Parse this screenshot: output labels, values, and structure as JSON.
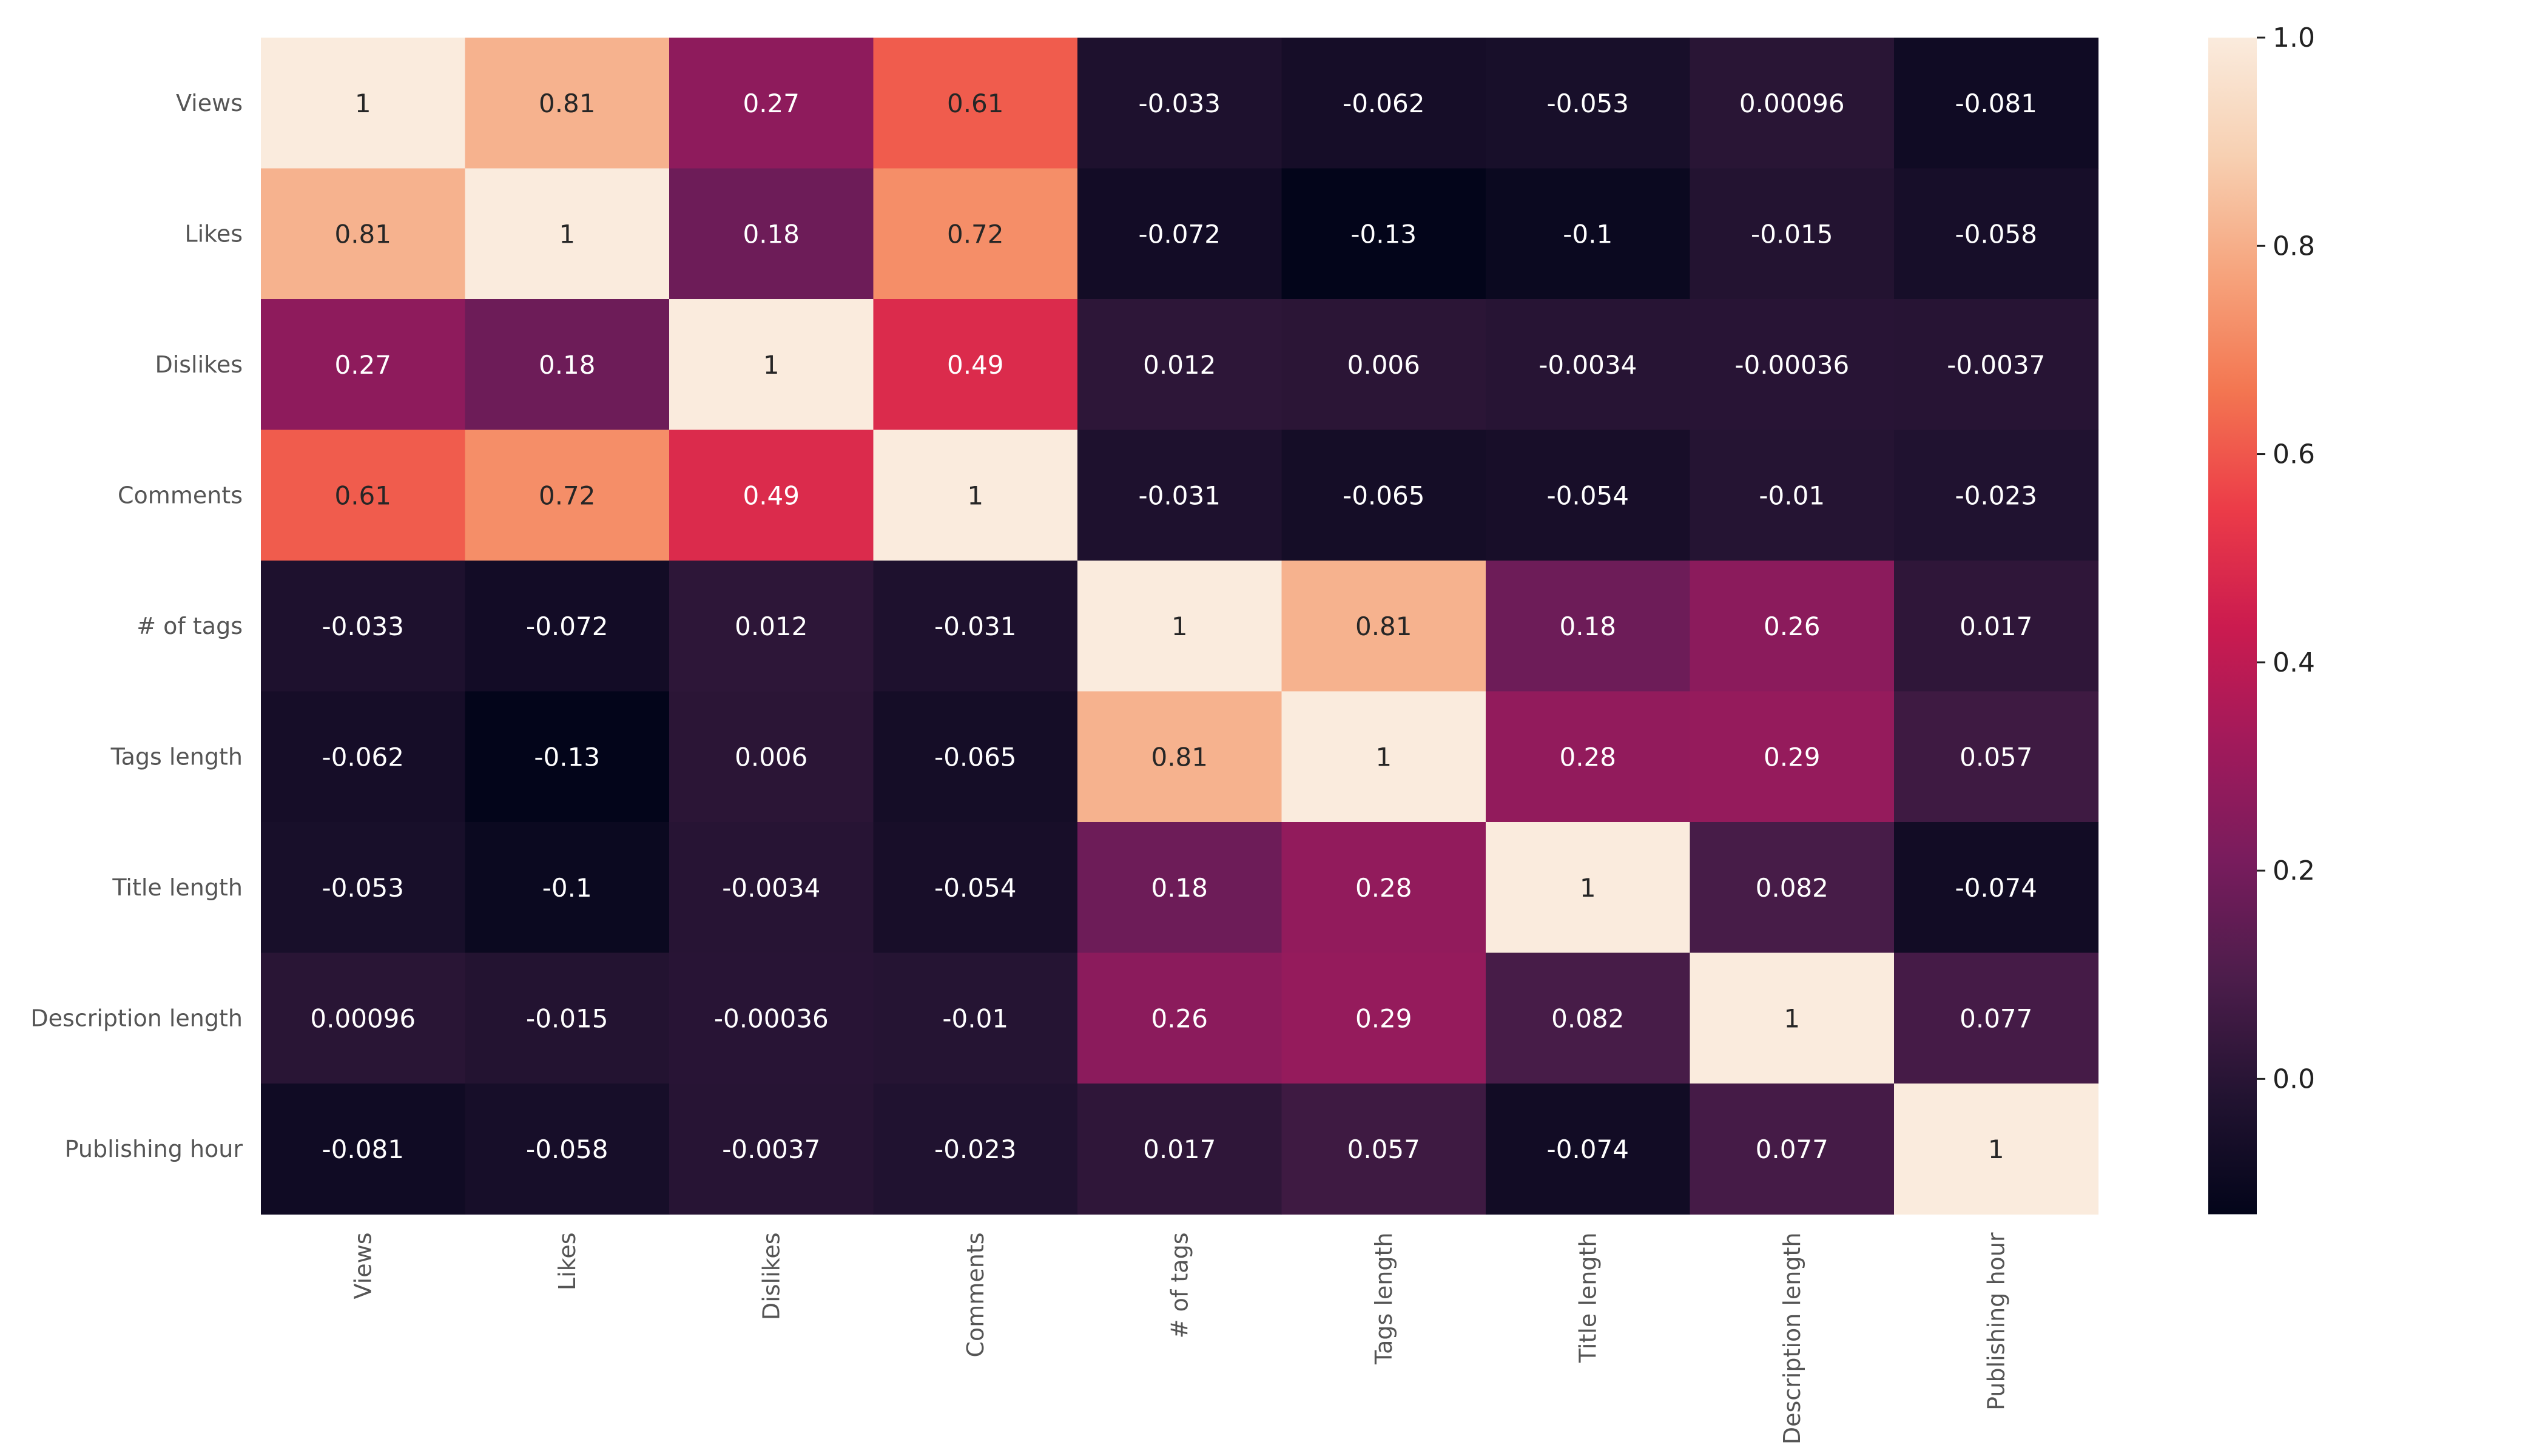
{
  "chart_data": {
    "type": "heatmap",
    "title": "",
    "xlabel": "",
    "ylabel": "",
    "rows": [
      "Views",
      "Likes",
      "Dislikes",
      "Comments",
      "# of tags",
      "Tags length",
      "Title length",
      "Description length",
      "Publishing hour"
    ],
    "columns": [
      "Views",
      "Likes",
      "Dislikes",
      "Comments",
      "# of tags",
      "Tags length",
      "Title length",
      "Description length",
      "Publishing hour"
    ],
    "values": [
      [
        1,
        0.81,
        0.27,
        0.61,
        -0.033,
        -0.062,
        -0.053,
        0.00096,
        -0.081
      ],
      [
        0.81,
        1,
        0.18,
        0.72,
        -0.072,
        -0.13,
        -0.1,
        -0.015,
        -0.058
      ],
      [
        0.27,
        0.18,
        1,
        0.49,
        0.012,
        0.006,
        -0.0034,
        -0.00036,
        -0.0037
      ],
      [
        0.61,
        0.72,
        0.49,
        1,
        -0.031,
        -0.065,
        -0.054,
        -0.01,
        -0.023
      ],
      [
        -0.033,
        -0.072,
        0.012,
        -0.031,
        1,
        0.81,
        0.18,
        0.26,
        0.017
      ],
      [
        -0.062,
        -0.13,
        0.006,
        -0.065,
        0.81,
        1,
        0.28,
        0.29,
        0.057
      ],
      [
        -0.053,
        -0.1,
        -0.0034,
        -0.054,
        0.18,
        0.28,
        1,
        0.082,
        -0.074
      ],
      [
        0.00096,
        -0.015,
        -0.00036,
        -0.01,
        0.26,
        0.29,
        0.082,
        1,
        0.077
      ],
      [
        -0.081,
        -0.058,
        -0.0037,
        -0.023,
        0.017,
        0.057,
        -0.074,
        0.077,
        1
      ]
    ],
    "labels": [
      [
        "1",
        "0.81",
        "0.27",
        "0.61",
        "-0.033",
        "-0.062",
        "-0.053",
        "0.00096",
        "-0.081"
      ],
      [
        "0.81",
        "1",
        "0.18",
        "0.72",
        "-0.072",
        "-0.13",
        "-0.1",
        "-0.015",
        "-0.058"
      ],
      [
        "0.27",
        "0.18",
        "1",
        "0.49",
        "0.012",
        "0.006",
        "-0.0034",
        "-0.00036",
        "-0.0037"
      ],
      [
        "0.61",
        "0.72",
        "0.49",
        "1",
        "-0.031",
        "-0.065",
        "-0.054",
        "-0.01",
        "-0.023"
      ],
      [
        "-0.033",
        "-0.072",
        "0.012",
        "-0.031",
        "1",
        "0.81",
        "0.18",
        "0.26",
        "0.017"
      ],
      [
        "-0.062",
        "-0.13",
        "0.006",
        "-0.065",
        "0.81",
        "1",
        "0.28",
        "0.29",
        "0.057"
      ],
      [
        "-0.053",
        "-0.1",
        "-0.0034",
        "-0.054",
        "0.18",
        "0.28",
        "1",
        "0.082",
        "-0.074"
      ],
      [
        "0.00096",
        "-0.015",
        "-0.00036",
        "-0.01",
        "0.26",
        "0.29",
        "0.082",
        "1",
        "0.077"
      ],
      [
        "-0.081",
        "-0.058",
        "-0.0037",
        "-0.023",
        "0.017",
        "0.057",
        "-0.074",
        "0.077",
        "1"
      ]
    ],
    "colorbar": {
      "range": [
        -0.13,
        1.0
      ],
      "ticks": [
        0.0,
        0.2,
        0.4,
        0.6,
        0.8,
        1.0
      ],
      "tick_labels": [
        "0.0",
        "0.2",
        "0.4",
        "0.6",
        "0.8",
        "1.0"
      ],
      "colormap": "rocket",
      "colormap_stops": [
        "#03051a",
        "#221331",
        "#4c1d4b",
        "#781c5d",
        "#a11a5b",
        "#cb1b4f",
        "#ec3c48",
        "#f37651",
        "#f6a47d",
        "#f7d0b2",
        "#faebdd"
      ]
    },
    "text_colors": {
      "dark_cell": "#ffffff",
      "light_cell": "#262626"
    }
  }
}
